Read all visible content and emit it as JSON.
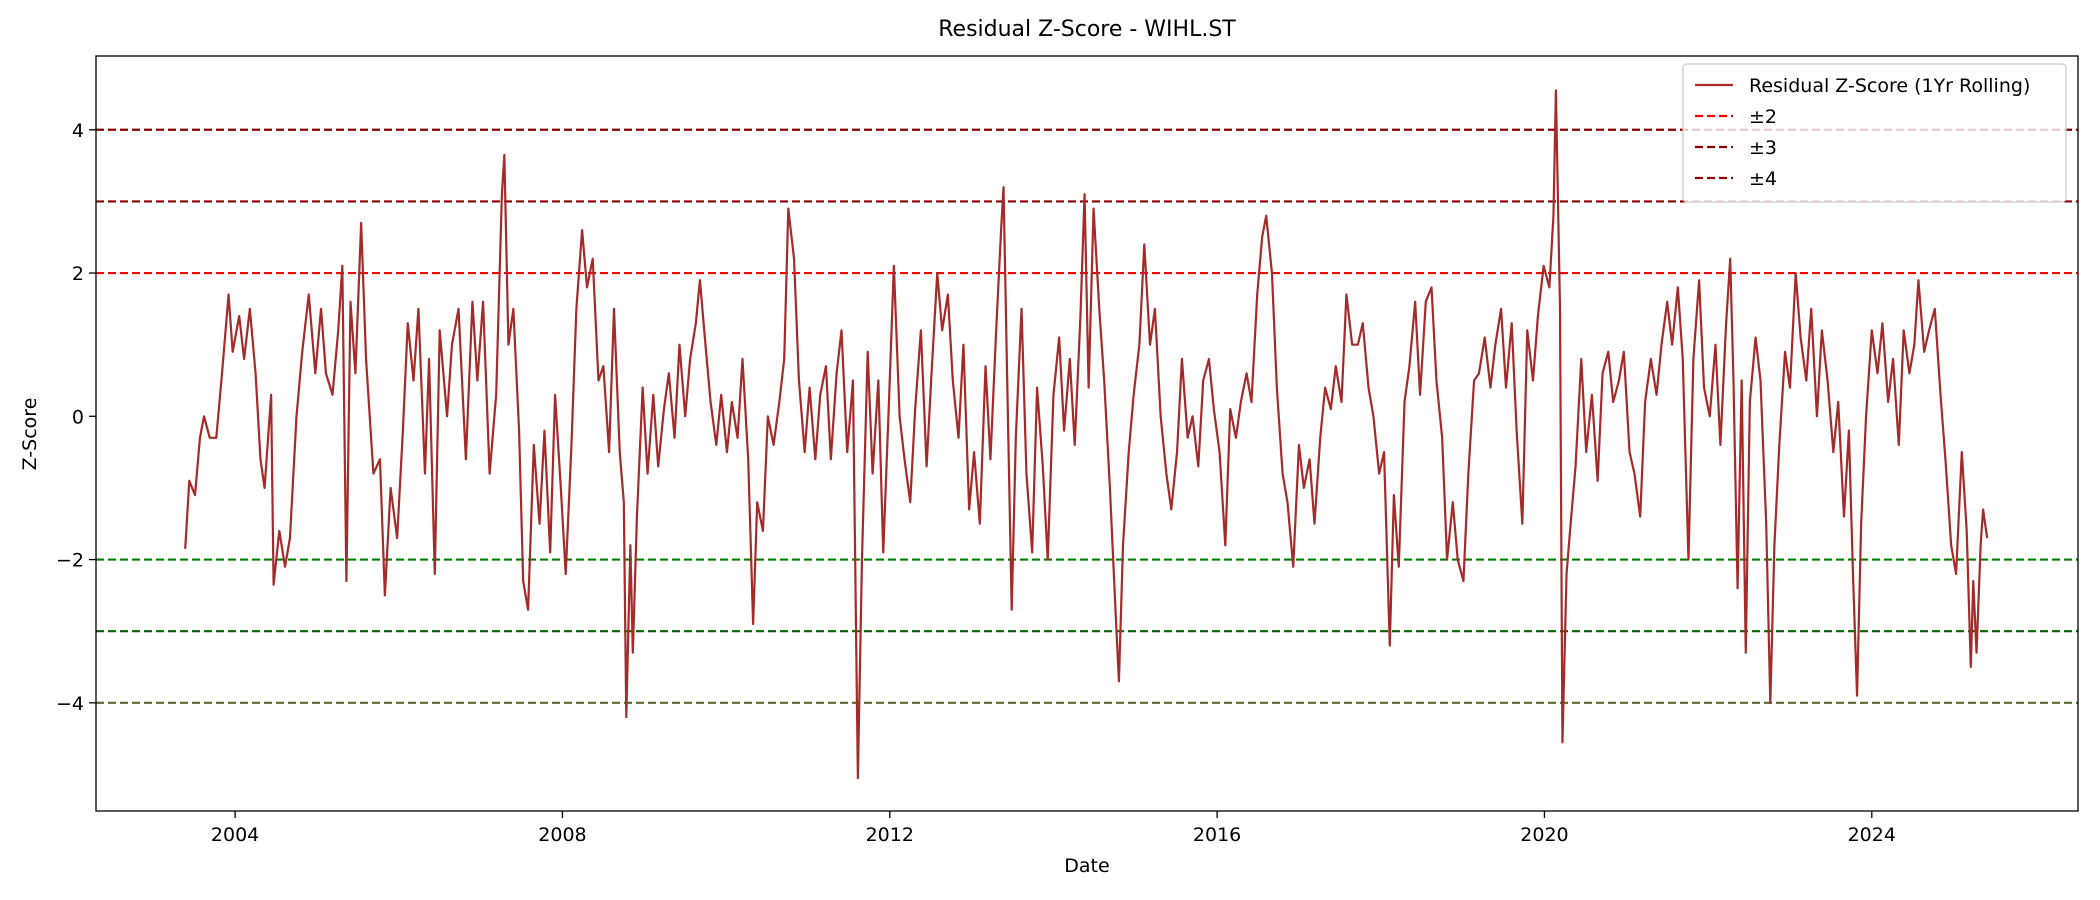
{
  "chart_data": {
    "type": "line",
    "title": "Residual Z-Score - WIHL.ST",
    "x_label": "Date",
    "y_label": "Z-Score",
    "xlim": [
      2002.3,
      2026.52
    ],
    "ylim": [
      -5.51,
      5.03
    ],
    "xticks": [
      2004,
      2008,
      2012,
      2016,
      2020,
      2024
    ],
    "yticks": [
      {
        "value": -4,
        "label": "−4"
      },
      {
        "value": -2,
        "label": "−2"
      },
      0,
      2,
      4
    ],
    "legend": "upper right",
    "x": [
      2003.39,
      2003.44,
      2003.51,
      2003.57,
      2003.62,
      2003.69,
      2003.77,
      2003.84,
      2003.92,
      2003.97,
      2004.05,
      2004.11,
      2004.18,
      2004.25,
      2004.31,
      2004.36,
      2004.44,
      2004.47,
      2004.54,
      2004.61,
      2004.67,
      2004.75,
      2004.82,
      2004.9,
      2004.98,
      2005.05,
      2005.11,
      2005.19,
      2005.26,
      2005.31,
      2005.36,
      2005.41,
      2005.47,
      2005.54,
      2005.6,
      2005.69,
      2005.77,
      2005.83,
      2005.9,
      2005.98,
      2006.05,
      2006.11,
      2006.18,
      2006.24,
      2006.32,
      2006.37,
      2006.44,
      2006.5,
      2006.59,
      2006.65,
      2006.73,
      2006.82,
      2006.9,
      2006.96,
      2007.03,
      2007.11,
      2007.19,
      2007.26,
      2007.29,
      2007.34,
      2007.4,
      2007.47,
      2007.52,
      2007.58,
      2007.65,
      2007.72,
      2007.78,
      2007.85,
      2007.91,
      2007.98,
      2008.04,
      2008.11,
      2008.17,
      2008.24,
      2008.3,
      2008.37,
      2008.44,
      2008.5,
      2008.57,
      2008.63,
      2008.7,
      2008.75,
      2008.78,
      2008.83,
      2008.86,
      2008.91,
      2008.98,
      2009.04,
      2009.11,
      2009.17,
      2009.24,
      2009.3,
      2009.37,
      2009.43,
      2009.5,
      2009.56,
      2009.63,
      2009.68,
      2009.74,
      2009.81,
      2009.88,
      2009.94,
      2010.01,
      2010.07,
      2010.14,
      2010.2,
      2010.27,
      2010.33,
      2010.38,
      2010.45,
      2010.51,
      2010.58,
      2010.65,
      2010.71,
      2010.76,
      2010.83,
      2010.89,
      2010.96,
      2011.02,
      2011.09,
      2011.15,
      2011.22,
      2011.28,
      2011.35,
      2011.41,
      2011.48,
      2011.55,
      2011.61,
      2011.66,
      2011.73,
      2011.79,
      2011.86,
      2011.92,
      2011.99,
      2012.05,
      2012.12,
      2012.18,
      2012.25,
      2012.31,
      2012.38,
      2012.45,
      2012.51,
      2012.58,
      2012.64,
      2012.71,
      2012.77,
      2012.84,
      2012.9,
      2012.97,
      2013.03,
      2013.1,
      2013.17,
      2013.23,
      2013.3,
      2013.36,
      2013.39,
      2013.44,
      2013.49,
      2013.54,
      2013.61,
      2013.67,
      2013.74,
      2013.8,
      2013.87,
      2013.93,
      2014.0,
      2014.07,
      2014.13,
      2014.2,
      2014.26,
      2014.33,
      2014.38,
      2014.43,
      2014.49,
      2014.56,
      2014.62,
      2014.69,
      2014.75,
      2014.8,
      2014.85,
      2014.92,
      2014.98,
      2015.05,
      2015.11,
      2015.18,
      2015.24,
      2015.31,
      2015.38,
      2015.44,
      2015.51,
      2015.57,
      2015.64,
      2015.7,
      2015.77,
      2015.83,
      2015.9,
      2015.96,
      2016.03,
      2016.1,
      2016.16,
      2016.23,
      2016.29,
      2016.36,
      2016.42,
      2016.49,
      2016.55,
      2016.6,
      2016.67,
      2016.73,
      2016.8,
      2016.86,
      2016.93,
      2017.0,
      2017.06,
      2017.13,
      2017.19,
      2017.26,
      2017.32,
      2017.39,
      2017.45,
      2017.52,
      2017.58,
      2017.65,
      2017.72,
      2017.78,
      2017.85,
      2017.91,
      2017.98,
      2018.04,
      2018.11,
      2018.16,
      2018.22,
      2018.29,
      2018.35,
      2018.42,
      2018.48,
      2018.55,
      2018.62,
      2018.68,
      2018.75,
      2018.81,
      2018.88,
      2018.94,
      2019.01,
      2019.07,
      2019.14,
      2019.2,
      2019.27,
      2019.34,
      2019.4,
      2019.47,
      2019.53,
      2019.6,
      2019.66,
      2019.73,
      2019.79,
      2019.86,
      2019.92,
      2019.99,
      2020.06,
      2020.11,
      2020.14,
      2020.19,
      2020.22,
      2020.27,
      2020.32,
      2020.38,
      2020.45,
      2020.51,
      2020.58,
      2020.65,
      2020.71,
      2020.78,
      2020.84,
      2020.91,
      2020.97,
      2021.04,
      2021.1,
      2021.17,
      2021.23,
      2021.3,
      2021.37,
      2021.43,
      2021.5,
      2021.56,
      2021.63,
      2021.69,
      2021.76,
      2021.82,
      2021.89,
      2021.95,
      2022.02,
      2022.09,
      2022.15,
      2022.22,
      2022.27,
      2022.31,
      2022.36,
      2022.41,
      2022.46,
      2022.51,
      2022.58,
      2022.64,
      2022.71,
      2022.76,
      2022.81,
      2022.87,
      2022.94,
      2023.0,
      2023.07,
      2023.13,
      2023.2,
      2023.26,
      2023.33,
      2023.39,
      2023.46,
      2023.53,
      2023.59,
      2023.66,
      2023.72,
      2023.77,
      2023.82,
      2023.87,
      2023.93,
      2024.0,
      2024.07,
      2024.13,
      2024.2,
      2024.26,
      2024.33,
      2024.39,
      2024.46,
      2024.52,
      2024.57,
      2024.64,
      2024.7,
      2024.77,
      2024.84,
      2024.9,
      2024.97,
      2025.03,
      2025.1,
      2025.16,
      2025.21,
      2025.24,
      2025.28,
      2025.33,
      2025.36,
      2025.41
    ],
    "series": [
      {
        "name": "Residual Z-Score (1Yr Rolling)",
        "color": "#a52a2a",
        "values": [
          -1.85,
          -0.9,
          -1.1,
          -0.3,
          0,
          -0.3,
          -0.3,
          0.6,
          1.7,
          0.9,
          1.4,
          0.8,
          1.5,
          0.6,
          -0.6,
          -1.0,
          0.3,
          -2.35,
          -1.6,
          -2.1,
          -1.7,
          0.0,
          0.9,
          1.7,
          0.6,
          1.5,
          0.6,
          0.3,
          1.2,
          2.1,
          -2.3,
          1.6,
          0.6,
          2.7,
          0.8,
          -0.8,
          -0.6,
          -2.5,
          -1.0,
          -1.7,
          -0.2,
          1.3,
          0.5,
          1.5,
          -0.8,
          0.8,
          -2.2,
          1.2,
          0.0,
          1.0,
          1.5,
          -0.6,
          1.6,
          0.5,
          1.6,
          -0.8,
          0.3,
          3.1,
          3.65,
          1.0,
          1.5,
          -0.2,
          -2.3,
          -2.7,
          -0.4,
          -1.5,
          -0.2,
          -1.9,
          0.3,
          -1.0,
          -2.2,
          -0.4,
          1.5,
          2.6,
          1.8,
          2.2,
          0.5,
          0.7,
          -0.5,
          1.5,
          -0.5,
          -1.2,
          -4.2,
          -1.8,
          -3.3,
          -1.4,
          0.4,
          -0.8,
          0.3,
          -0.7,
          0.1,
          0.6,
          -0.3,
          1.0,
          0.0,
          0.8,
          1.3,
          1.9,
          1.1,
          0.2,
          -0.4,
          0.3,
          -0.5,
          0.2,
          -0.3,
          0.8,
          -0.6,
          -2.9,
          -1.2,
          -1.6,
          0.0,
          -0.4,
          0.2,
          0.8,
          2.9,
          2.2,
          0.5,
          -0.5,
          0.4,
          -0.6,
          0.3,
          0.7,
          -0.6,
          0.6,
          1.2,
          -0.5,
          0.5,
          -5.05,
          -2.0,
          0.9,
          -0.8,
          0.5,
          -1.9,
          0.2,
          2.1,
          0.0,
          -0.6,
          -1.2,
          0.1,
          1.2,
          -0.7,
          0.6,
          2.0,
          1.2,
          1.7,
          0.5,
          -0.3,
          1.0,
          -1.3,
          -0.5,
          -1.5,
          0.7,
          -0.6,
          1.2,
          2.6,
          3.2,
          0.2,
          -2.7,
          -0.3,
          1.5,
          -0.8,
          -1.9,
          0.4,
          -0.7,
          -2.0,
          0.3,
          1.1,
          -0.2,
          0.8,
          -0.4,
          1.4,
          3.1,
          0.4,
          2.9,
          1.5,
          0.5,
          -1.0,
          -2.5,
          -3.7,
          -1.8,
          -0.5,
          0.3,
          1.0,
          2.4,
          1.0,
          1.5,
          0.0,
          -0.8,
          -1.3,
          -0.5,
          0.8,
          -0.3,
          0.0,
          -0.7,
          0.5,
          0.8,
          0.1,
          -0.5,
          -1.8,
          0.1,
          -0.3,
          0.2,
          0.6,
          0.2,
          1.7,
          2.5,
          2.8,
          2.0,
          0.4,
          -0.8,
          -1.2,
          -2.1,
          -0.4,
          -1.0,
          -0.6,
          -1.5,
          -0.3,
          0.4,
          0.1,
          0.7,
          0.2,
          1.7,
          1.0,
          1.0,
          1.3,
          0.4,
          0.0,
          -0.8,
          -0.5,
          -3.2,
          -1.1,
          -2.1,
          0.2,
          0.7,
          1.6,
          0.3,
          1.6,
          1.8,
          0.5,
          -0.3,
          -2.0,
          -1.2,
          -2.0,
          -2.3,
          -0.8,
          0.5,
          0.6,
          1.1,
          0.4,
          1.0,
          1.5,
          0.4,
          1.3,
          -0.2,
          -1.5,
          1.2,
          0.5,
          1.4,
          2.1,
          1.8,
          2.8,
          4.55,
          1.5,
          -4.55,
          -2.2,
          -1.5,
          -0.7,
          0.8,
          -0.5,
          0.3,
          -0.9,
          0.6,
          0.9,
          0.2,
          0.5,
          0.9,
          -0.5,
          -0.8,
          -1.4,
          0.2,
          0.8,
          0.3,
          1.0,
          1.6,
          1.0,
          1.8,
          0.8,
          -2.0,
          0.8,
          1.9,
          0.4,
          0.0,
          1.0,
          -0.4,
          1.3,
          2.2,
          0.5,
          -2.4,
          0.5,
          -3.3,
          0.2,
          1.1,
          0.5,
          -1.5,
          -4.0,
          -1.8,
          -0.4,
          0.9,
          0.4,
          2.0,
          1.1,
          0.5,
          1.5,
          0.0,
          1.2,
          0.5,
          -0.5,
          0.2,
          -1.4,
          -0.2,
          -2.2,
          -3.9,
          -1.5,
          0.0,
          1.2,
          0.6,
          1.3,
          0.2,
          0.8,
          -0.4,
          1.2,
          0.6,
          1.0,
          1.9,
          0.9,
          1.2,
          1.5,
          0.3,
          -0.6,
          -1.8,
          -2.2,
          -0.5,
          -1.6,
          -3.5,
          -2.3,
          -3.3,
          -1.8,
          -1.3,
          -1.7
        ]
      }
    ],
    "reference_lines": [
      {
        "name": "±2",
        "values": [
          2,
          -2
        ],
        "colors": [
          "#ff0000",
          "#008000"
        ]
      },
      {
        "name": "±3",
        "values": [
          3,
          -3
        ],
        "colors": [
          "#8b0000",
          "#006400"
        ]
      },
      {
        "name": "±4",
        "values": [
          4,
          -4
        ],
        "colors": [
          "#8b0000",
          "#556b2f"
        ]
      }
    ]
  }
}
